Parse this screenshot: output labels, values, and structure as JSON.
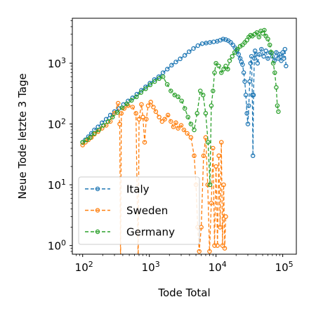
{
  "chart_data": {
    "type": "line",
    "title": "",
    "xlabel": "Tode Total",
    "ylabel": "Neue Tode letzte 3 Tage",
    "xscale": "log",
    "yscale": "log",
    "xlim": [
      70,
      160000
    ],
    "ylim": [
      0.72,
      5500
    ],
    "x_ticks": [
      {
        "value": 100,
        "base": "10",
        "exp": "2"
      },
      {
        "value": 1000,
        "base": "10",
        "exp": "3"
      },
      {
        "value": 10000,
        "base": "10",
        "exp": "4"
      },
      {
        "value": 100000,
        "base": "10",
        "exp": "5"
      }
    ],
    "y_ticks": [
      {
        "value": 1,
        "base": "10",
        "exp": "0"
      },
      {
        "value": 10,
        "base": "10",
        "exp": "1"
      },
      {
        "value": 100,
        "base": "10",
        "exp": "2"
      },
      {
        "value": 1000,
        "base": "10",
        "exp": "3"
      }
    ],
    "grid": false,
    "legend_position": "lower-left",
    "line_style": "dashed",
    "marker": "open-circle",
    "series": [
      {
        "name": "Italy",
        "color": "#1f77b4",
        "points": [
          [
            100,
            50
          ],
          [
            110,
            55
          ],
          [
            122,
            62
          ],
          [
            135,
            70
          ],
          [
            150,
            80
          ],
          [
            170,
            90
          ],
          [
            195,
            105
          ],
          [
            225,
            120
          ],
          [
            260,
            140
          ],
          [
            300,
            160
          ],
          [
            350,
            180
          ],
          [
            410,
            210
          ],
          [
            480,
            240
          ],
          [
            560,
            270
          ],
          [
            650,
            310
          ],
          [
            760,
            360
          ],
          [
            880,
            410
          ],
          [
            1020,
            470
          ],
          [
            1190,
            540
          ],
          [
            1380,
            600
          ],
          [
            1600,
            700
          ],
          [
            1860,
            800
          ],
          [
            2160,
            930
          ],
          [
            2500,
            1050
          ],
          [
            2900,
            1180
          ],
          [
            3400,
            1350
          ],
          [
            3950,
            1550
          ],
          [
            4600,
            1750
          ],
          [
            5350,
            1950
          ],
          [
            6200,
            2100
          ],
          [
            7100,
            2150
          ],
          [
            8100,
            2200
          ],
          [
            9200,
            2250
          ],
          [
            10400,
            2300
          ],
          [
            11600,
            2400
          ],
          [
            12800,
            2500
          ],
          [
            14000,
            2450
          ],
          [
            15300,
            2350
          ],
          [
            16600,
            2200
          ],
          [
            17900,
            2000
          ],
          [
            19200,
            1800
          ],
          [
            20500,
            1600
          ],
          [
            21800,
            1400
          ],
          [
            23000,
            1200
          ],
          [
            24000,
            1050
          ],
          [
            25000,
            950
          ],
          [
            26000,
            700
          ],
          [
            27000,
            500
          ],
          [
            28000,
            300
          ],
          [
            29000,
            150
          ],
          [
            30000,
            100
          ],
          [
            31000,
            200
          ],
          [
            32000,
            500
          ],
          [
            33000,
            1000
          ],
          [
            34000,
            1300
          ],
          [
            35000,
            300
          ],
          [
            35800,
            30
          ],
          [
            36500,
            300
          ],
          [
            37500,
            1200
          ],
          [
            38500,
            1600
          ],
          [
            40000,
            1400
          ],
          [
            42000,
            1000
          ],
          [
            45000,
            1400
          ],
          [
            48000,
            1700
          ],
          [
            52000,
            1300
          ],
          [
            56000,
            1600
          ],
          [
            60000,
            1200
          ],
          [
            65000,
            1500
          ],
          [
            70000,
            1300
          ],
          [
            75000,
            1100
          ],
          [
            80000,
            1500
          ],
          [
            85000,
            1200
          ],
          [
            90000,
            1400
          ],
          [
            95000,
            1100
          ],
          [
            100000,
            1500
          ],
          [
            104000,
            1200
          ],
          [
            108000,
            1700
          ],
          [
            112000,
            900
          ]
        ]
      },
      {
        "name": "Sweden",
        "color": "#ff7f0e",
        "points": [
          [
            100,
            45
          ],
          [
            110,
            50
          ],
          [
            122,
            55
          ],
          [
            135,
            60
          ],
          [
            150,
            68
          ],
          [
            170,
            75
          ],
          [
            195,
            85
          ],
          [
            225,
            95
          ],
          [
            260,
            110
          ],
          [
            300,
            150
          ],
          [
            340,
            220
          ],
          [
            360,
            100
          ],
          [
            370,
            0.5
          ],
          [
            380,
            150
          ],
          [
            420,
            180
          ],
          [
            480,
            200
          ],
          [
            560,
            190
          ],
          [
            630,
            150
          ],
          [
            680,
            0.5
          ],
          [
            700,
            120
          ],
          [
            760,
            210
          ],
          [
            800,
            130
          ],
          [
            850,
            50
          ],
          [
            900,
            120
          ],
          [
            960,
            200
          ],
          [
            1050,
            230
          ],
          [
            1150,
            190
          ],
          [
            1250,
            160
          ],
          [
            1400,
            130
          ],
          [
            1550,
            110
          ],
          [
            1700,
            120
          ],
          [
            1900,
            140
          ],
          [
            2100,
            110
          ],
          [
            2300,
            90
          ],
          [
            2500,
            105
          ],
          [
            2700,
            85
          ],
          [
            3000,
            95
          ],
          [
            3300,
            80
          ],
          [
            3700,
            70
          ],
          [
            4200,
            60
          ],
          [
            4700,
            30
          ],
          [
            5000,
            10
          ],
          [
            5300,
            2
          ],
          [
            5600,
            0.8
          ],
          [
            6000,
            2
          ],
          [
            6500,
            30
          ],
          [
            7000,
            60
          ],
          [
            7500,
            10
          ],
          [
            8000,
            0.8
          ],
          [
            8500,
            5
          ],
          [
            9000,
            40
          ],
          [
            9500,
            1
          ],
          [
            10000,
            20
          ],
          [
            10500,
            1
          ],
          [
            11000,
            30
          ],
          [
            11500,
            2
          ],
          [
            12000,
            50
          ],
          [
            12500,
            1
          ],
          [
            13000,
            10
          ],
          [
            13500,
            0.9
          ],
          [
            14000,
            3
          ]
        ]
      },
      {
        "name": "Germany",
        "color": "#2ca02c",
        "points": [
          [
            100,
            50
          ],
          [
            115,
            55
          ],
          [
            130,
            60
          ],
          [
            150,
            70
          ],
          [
            175,
            80
          ],
          [
            205,
            95
          ],
          [
            240,
            110
          ],
          [
            280,
            130
          ],
          [
            330,
            155
          ],
          [
            390,
            185
          ],
          [
            460,
            215
          ],
          [
            540,
            245
          ],
          [
            640,
            280
          ],
          [
            750,
            330
          ],
          [
            880,
            380
          ],
          [
            1030,
            440
          ],
          [
            1200,
            500
          ],
          [
            1400,
            560
          ],
          [
            1600,
            600
          ],
          [
            1850,
            450
          ],
          [
            2100,
            350
          ],
          [
            2400,
            300
          ],
          [
            2700,
            280
          ],
          [
            3050,
            240
          ],
          [
            3400,
            180
          ],
          [
            3800,
            130
          ],
          [
            4200,
            100
          ],
          [
            4700,
            80
          ],
          [
            5200,
            150
          ],
          [
            5800,
            350
          ],
          [
            6400,
            300
          ],
          [
            7000,
            150
          ],
          [
            7600,
            50
          ],
          [
            8100,
            10
          ],
          [
            8500,
            200
          ],
          [
            9000,
            350
          ],
          [
            9500,
            700
          ],
          [
            10000,
            1000
          ],
          [
            11000,
            900
          ],
          [
            12000,
            700
          ],
          [
            13000,
            800
          ],
          [
            14000,
            900
          ],
          [
            15000,
            800
          ],
          [
            16000,
            1100
          ],
          [
            17500,
            1300
          ],
          [
            19000,
            1500
          ],
          [
            21000,
            1700
          ],
          [
            23000,
            1900
          ],
          [
            25000,
            2000
          ],
          [
            27000,
            2200
          ],
          [
            29000,
            2400
          ],
          [
            31000,
            2700
          ],
          [
            33000,
            2900
          ],
          [
            35000,
            2800
          ],
          [
            38000,
            3000
          ],
          [
            41000,
            3200
          ],
          [
            44000,
            2700
          ],
          [
            47000,
            3400
          ],
          [
            50000,
            3100
          ],
          [
            53000,
            3500
          ],
          [
            56000,
            2800
          ],
          [
            60000,
            2500
          ],
          [
            64000,
            2000
          ],
          [
            68000,
            1500
          ],
          [
            72000,
            1000
          ],
          [
            76000,
            700
          ],
          [
            80000,
            400
          ],
          [
            83000,
            200
          ],
          [
            86000,
            160
          ]
        ]
      }
    ]
  }
}
